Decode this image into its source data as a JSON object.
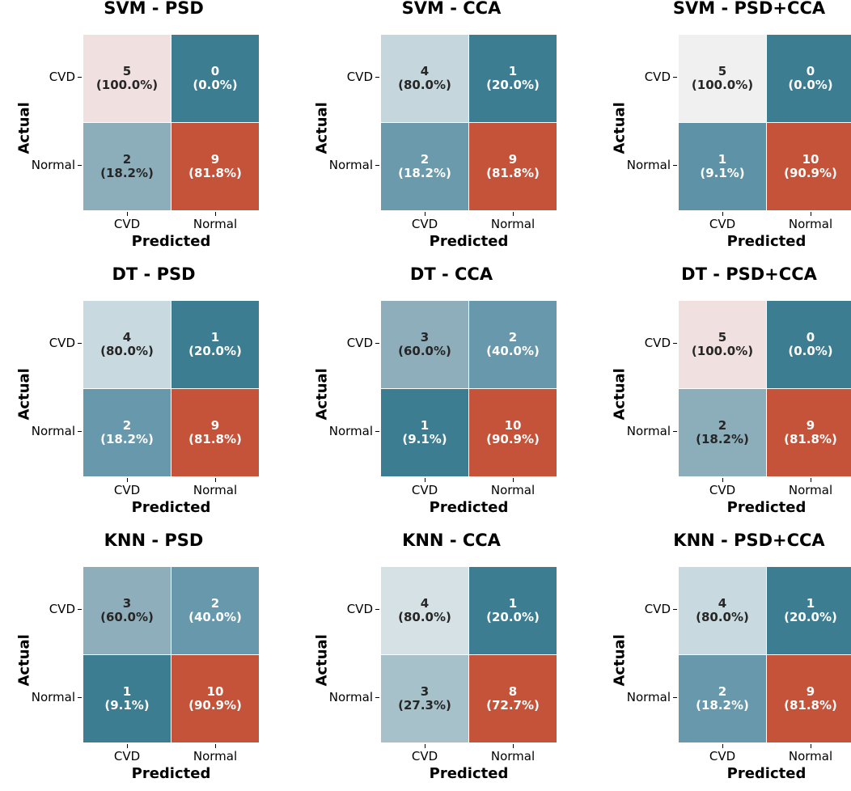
{
  "chart_data": [
    {
      "type": "heatmap",
      "title": "SVM - PSD",
      "xlabel": "Predicted",
      "ylabel": "Actual",
      "x_ticks": [
        "CVD",
        "Normal"
      ],
      "y_ticks": [
        "CVD",
        "Normal"
      ],
      "cells": [
        [
          "5",
          "(100.0%)",
          "0",
          "(0.0%)"
        ],
        [
          "2",
          "(18.2%)",
          "9",
          "(81.8%)"
        ]
      ],
      "colors": [
        [
          "#f0e1e0",
          "#3d7d92"
        ],
        [
          "#8cadba",
          "#c5533a"
        ]
      ],
      "text_dark": [
        [
          true,
          false
        ],
        [
          true,
          false
        ]
      ]
    },
    {
      "type": "heatmap",
      "title": "SVM - CCA",
      "xlabel": "Predicted",
      "ylabel": "Actual",
      "x_ticks": [
        "CVD",
        "Normal"
      ],
      "y_ticks": [
        "CVD",
        "Normal"
      ],
      "cells": [
        [
          "4",
          "(80.0%)",
          "1",
          "(20.0%)"
        ],
        [
          "2",
          "(18.2%)",
          "9",
          "(81.8%)"
        ]
      ],
      "colors": [
        [
          "#c5d6dd",
          "#3d7d92"
        ],
        [
          "#6a9aab",
          "#c5533a"
        ]
      ],
      "text_dark": [
        [
          true,
          false
        ],
        [
          false,
          false
        ]
      ]
    },
    {
      "type": "heatmap",
      "title": "SVM - PSD+CCA",
      "xlabel": "Predicted",
      "ylabel": "Actual",
      "x_ticks": [
        "CVD",
        "Normal"
      ],
      "y_ticks": [
        "CVD",
        "Normal"
      ],
      "cells": [
        [
          "5",
          "(100.0%)",
          "0",
          "(0.0%)"
        ],
        [
          "1",
          "(9.1%)",
          "10",
          "(90.9%)"
        ]
      ],
      "colors": [
        [
          "#f0f0f0",
          "#3d7d92"
        ],
        [
          "#5e93a7",
          "#c5533a"
        ]
      ],
      "text_dark": [
        [
          true,
          false
        ],
        [
          false,
          false
        ]
      ]
    },
    {
      "type": "heatmap",
      "title": "DT - PSD",
      "xlabel": "Predicted",
      "ylabel": "Actual",
      "x_ticks": [
        "CVD",
        "Normal"
      ],
      "y_ticks": [
        "CVD",
        "Normal"
      ],
      "cells": [
        [
          "4",
          "(80.0%)",
          "1",
          "(20.0%)"
        ],
        [
          "2",
          "(18.2%)",
          "9",
          "(81.8%)"
        ]
      ],
      "colors": [
        [
          "#c8d9df",
          "#3d7d92"
        ],
        [
          "#6898ab",
          "#c5533a"
        ]
      ],
      "text_dark": [
        [
          true,
          false
        ],
        [
          false,
          false
        ]
      ]
    },
    {
      "type": "heatmap",
      "title": "DT - CCA",
      "xlabel": "Predicted",
      "ylabel": "Actual",
      "x_ticks": [
        "CVD",
        "Normal"
      ],
      "y_ticks": [
        "CVD",
        "Normal"
      ],
      "cells": [
        [
          "3",
          "(60.0%)",
          "2",
          "(40.0%)"
        ],
        [
          "1",
          "(9.1%)",
          "10",
          "(90.9%)"
        ]
      ],
      "colors": [
        [
          "#8eaebb",
          "#6898ab"
        ],
        [
          "#3d7d92",
          "#c5533a"
        ]
      ],
      "text_dark": [
        [
          true,
          false
        ],
        [
          false,
          false
        ]
      ]
    },
    {
      "type": "heatmap",
      "title": "DT - PSD+CCA",
      "xlabel": "Predicted",
      "ylabel": "Actual",
      "x_ticks": [
        "CVD",
        "Normal"
      ],
      "y_ticks": [
        "CVD",
        "Normal"
      ],
      "cells": [
        [
          "5",
          "(100.0%)",
          "0",
          "(0.0%)"
        ],
        [
          "2",
          "(18.2%)",
          "9",
          "(81.8%)"
        ]
      ],
      "colors": [
        [
          "#f0e1e0",
          "#3d7d92"
        ],
        [
          "#8cadba",
          "#c5533a"
        ]
      ],
      "text_dark": [
        [
          true,
          false
        ],
        [
          true,
          false
        ]
      ]
    },
    {
      "type": "heatmap",
      "title": "KNN - PSD",
      "xlabel": "Predicted",
      "ylabel": "Actual",
      "x_ticks": [
        "CVD",
        "Normal"
      ],
      "y_ticks": [
        "CVD",
        "Normal"
      ],
      "cells": [
        [
          "3",
          "(60.0%)",
          "2",
          "(40.0%)"
        ],
        [
          "1",
          "(9.1%)",
          "10",
          "(90.9%)"
        ]
      ],
      "colors": [
        [
          "#8eaebb",
          "#6898ab"
        ],
        [
          "#3d7d92",
          "#c5533a"
        ]
      ],
      "text_dark": [
        [
          true,
          false
        ],
        [
          false,
          false
        ]
      ]
    },
    {
      "type": "heatmap",
      "title": "KNN - CCA",
      "xlabel": "Predicted",
      "ylabel": "Actual",
      "x_ticks": [
        "CVD",
        "Normal"
      ],
      "y_ticks": [
        "CVD",
        "Normal"
      ],
      "cells": [
        [
          "4",
          "(80.0%)",
          "1",
          "(20.0%)"
        ],
        [
          "3",
          "(27.3%)",
          "8",
          "(72.7%)"
        ]
      ],
      "colors": [
        [
          "#d6e1e5",
          "#3d7d92"
        ],
        [
          "#a6c1ca",
          "#c5533a"
        ]
      ],
      "text_dark": [
        [
          true,
          false
        ],
        [
          true,
          false
        ]
      ]
    },
    {
      "type": "heatmap",
      "title": "KNN - PSD+CCA",
      "xlabel": "Predicted",
      "ylabel": "Actual",
      "x_ticks": [
        "CVD",
        "Normal"
      ],
      "y_ticks": [
        "CVD",
        "Normal"
      ],
      "cells": [
        [
          "4",
          "(80.0%)",
          "1",
          "(20.0%)"
        ],
        [
          "2",
          "(18.2%)",
          "9",
          "(81.8%)"
        ]
      ],
      "colors": [
        [
          "#c8d9df",
          "#3d7d92"
        ],
        [
          "#6898ab",
          "#c5533a"
        ]
      ],
      "text_dark": [
        [
          true,
          false
        ],
        [
          false,
          false
        ]
      ]
    }
  ]
}
